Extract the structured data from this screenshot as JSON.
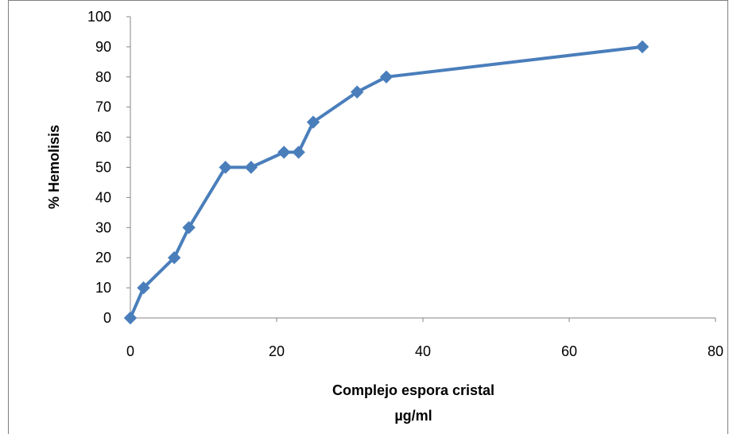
{
  "chart_data": {
    "type": "line",
    "title": "",
    "xlabel": "Complejo espora cristal",
    "xlabel_unit": "µg/ml",
    "ylabel": "% Hemolisis",
    "xlim": [
      0,
      80
    ],
    "ylim": [
      0,
      100
    ],
    "x_ticks": [
      0,
      20,
      40,
      60,
      80
    ],
    "y_ticks": [
      0,
      10,
      20,
      30,
      40,
      50,
      60,
      70,
      80,
      90,
      100
    ],
    "grid": false,
    "legend": "none",
    "series": [
      {
        "color": "#4a7ebb",
        "marker": "diamond",
        "x": [
          0,
          1.8,
          6,
          8,
          13,
          16.5,
          21,
          23,
          25,
          31,
          35,
          70
        ],
        "y": [
          0,
          10,
          20,
          30,
          50,
          50,
          55,
          55,
          65,
          75,
          80,
          90
        ]
      }
    ]
  }
}
